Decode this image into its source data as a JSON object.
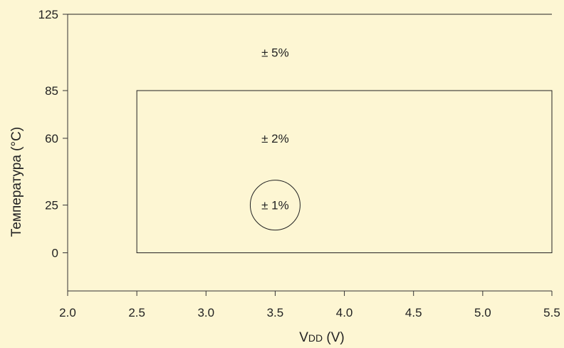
{
  "chart_data": {
    "type": "region-diagram",
    "xlabel": "VDD (V)",
    "xlabel_main": "V",
    "xlabel_sub": "DD",
    "xlabel_unit": " (V)",
    "ylabel": "Температура (°C)",
    "xlim": [
      2.0,
      5.5
    ],
    "ylim": [
      -20,
      125
    ],
    "x_ticks": [
      2.0,
      2.5,
      3.0,
      3.5,
      4.0,
      4.5,
      5.0,
      5.5
    ],
    "y_ticks": [
      0,
      25,
      60,
      85,
      125
    ],
    "regions": [
      {
        "label": "± 5%",
        "shape": "outer",
        "label_at": [
          3.5,
          105
        ]
      },
      {
        "label": "± 2%",
        "shape": "rect",
        "x": [
          2.5,
          5.5
        ],
        "y": [
          0,
          85
        ],
        "label_at": [
          3.5,
          60
        ]
      },
      {
        "label": "± 1%",
        "shape": "circle",
        "center": [
          3.5,
          25
        ],
        "label_at": [
          3.5,
          25
        ]
      }
    ],
    "grid": false
  },
  "colors": {
    "background": "#fdf6d3",
    "line": "#222222",
    "text": "#222222"
  }
}
